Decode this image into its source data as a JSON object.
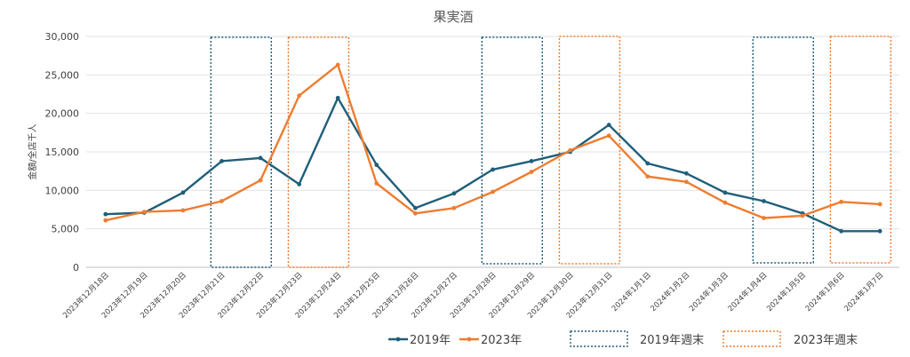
{
  "chart_data": {
    "type": "line",
    "title": "果実酒",
    "ylabel": "金額/全店千人",
    "xlabel": "",
    "ylim": [
      0,
      30000
    ],
    "yticks": [
      0,
      5000,
      10000,
      15000,
      20000,
      25000,
      30000
    ],
    "ytick_labels": [
      "0",
      "5,000",
      "10,000",
      "15,000",
      "20,000",
      "25,000",
      "30,000"
    ],
    "grid": true,
    "legend_position": "bottom",
    "categories": [
      "2023年12月18日",
      "2023年12月19日",
      "2023年12月20日",
      "2023年12月21日",
      "2023年12月22日",
      "2023年12月23日",
      "2023年12月24日",
      "2023年12月25日",
      "2023年12月26日",
      "2023年12月27日",
      "2023年12月28日",
      "2023年12月29日",
      "2023年12月30日",
      "2023年12月31日",
      "2024年1月1日",
      "2024年1月2日",
      "2024年1月3日",
      "2024年1月4日",
      "2024年1月5日",
      "2024年1月6日",
      "2024年1月7日"
    ],
    "series": [
      {
        "name": "2019年",
        "color": "#1f5f7a",
        "values": [
          6900,
          7100,
          9700,
          13800,
          14200,
          10800,
          22000,
          13300,
          7700,
          9600,
          12700,
          13800,
          15000,
          18500,
          13500,
          12200,
          9700,
          8600,
          7000,
          4700,
          4700
        ]
      },
      {
        "name": "2023年",
        "color": "#ed7d31",
        "values": [
          6100,
          7200,
          7400,
          8600,
          11300,
          22300,
          26300,
          10900,
          7000,
          7700,
          9800,
          12400,
          15200,
          17100,
          11800,
          11100,
          8400,
          6400,
          6700,
          8500,
          8200
        ]
      }
    ],
    "weekend_boxes": [
      {
        "name": "2019年週末",
        "color": "#1f5f7a",
        "spans": [
          [
            3,
            4
          ],
          [
            10,
            11
          ],
          [
            17,
            18
          ]
        ]
      },
      {
        "name": "2023年週末",
        "color": "#ed7d31",
        "spans": [
          [
            5,
            6
          ],
          [
            12,
            13
          ],
          [
            19,
            20
          ]
        ]
      }
    ]
  }
}
